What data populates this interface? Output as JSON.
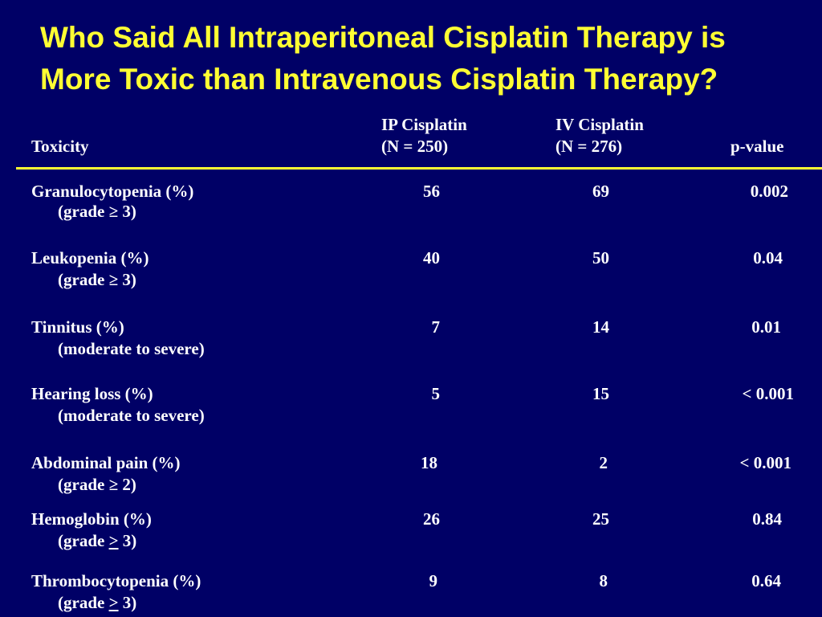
{
  "slide": {
    "title_line1": "Who Said All Intraperitoneal Cisplatin Therapy is",
    "title_line2": "More Toxic than Intravenous Cisplatin Therapy?"
  },
  "table": {
    "headers": {
      "toxicity": "Toxicity",
      "ip_name": "IP Cisplatin",
      "ip_n": "(N = 250)",
      "iv_name": "IV Cisplatin",
      "iv_n": "(N = 276)",
      "pvalue": "p-value"
    },
    "rows": [
      {
        "name": "Granulocytopenia (%)",
        "pre": "(grade ",
        "sym": "≥",
        "post": " 3)",
        "ip": "56",
        "iv": "69",
        "p": "0.002"
      },
      {
        "name": "Leukopenia (%)",
        "pre": "(grade ",
        "sym": "≥",
        "post": " 3)",
        "ip": "40",
        "iv": "50",
        "p": "0.04"
      },
      {
        "name": "Tinnitus (%)",
        "pre": "(moderate to severe)",
        "sym": "",
        "post": "",
        "ip": "7",
        "iv": "14",
        "p": "0.01"
      },
      {
        "name": "Hearing loss (%)",
        "pre": "(moderate to severe)",
        "sym": "",
        "post": "",
        "ip": "5",
        "iv": "15",
        "p": "< 0.001"
      },
      {
        "name": "Abdominal pain (%)",
        "pre": "(grade ",
        "sym": "≥",
        "post": " 2)",
        "ip": "18",
        "iv": "2",
        "p": "< 0.001"
      },
      {
        "name": "Hemoglobin (%)",
        "pre": "(grade ",
        "sym": ">",
        "post": " 3)",
        "ip": "26",
        "iv": "25",
        "p": "0.84"
      },
      {
        "name": "Thrombocytopenia (%)",
        "pre": "(grade ",
        "sym": ">",
        "post": " 3)",
        "ip": "9",
        "iv": "8",
        "p": "0.64"
      }
    ]
  }
}
